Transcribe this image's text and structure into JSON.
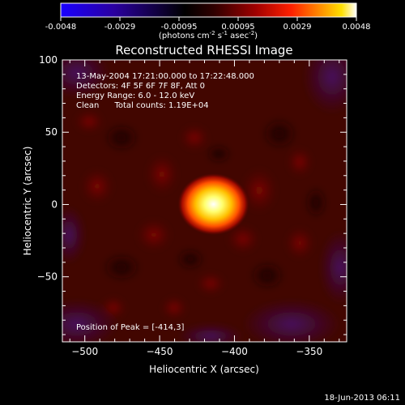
{
  "colorbar": {
    "ticks": [
      "-0.0048",
      "-0.0029",
      "-0.00095",
      "0.00095",
      "0.0029",
      "0.0048"
    ],
    "units_parts": [
      "(photons cm",
      "-2",
      " s",
      "-1",
      " asec",
      "-2",
      ")"
    ]
  },
  "chart_data": {
    "type": "heatmap",
    "title": "Reconstructed RHESSI Image",
    "xlabel": "Heliocentric X (arcsec)",
    "ylabel": "Heliocentric Y (arcsec)",
    "xlim": [
      -515,
      -325
    ],
    "ylim": [
      -95,
      100
    ],
    "x_ticks": [
      -500,
      -450,
      -400,
      -350
    ],
    "y_ticks": [
      -50,
      0,
      50,
      100
    ],
    "x_tick_labels": [
      "−500",
      "−450",
      "−400",
      "−350"
    ],
    "y_tick_labels": [
      "−50",
      "0",
      "50",
      "100"
    ],
    "colormap": "hot-blue (blue-black-red-yellow-white)",
    "color_range": [
      -0.0048,
      0.0048
    ],
    "peak": {
      "x": -414,
      "y": 3,
      "value": 0.0048
    },
    "info_lines": [
      "13-May-2004 17:21:00.000 to 17:22:48.000",
      "Detectors: 4F 5F 6F 7F 8F, Att 0",
      "Energy Range: 6.0 - 12.0 keV",
      "Clean      Total counts: 1.19E+04"
    ],
    "peak_label": "Position of Peak = [-414,3]"
  },
  "footer": {
    "date": "18-Jun-2013 06:11"
  }
}
